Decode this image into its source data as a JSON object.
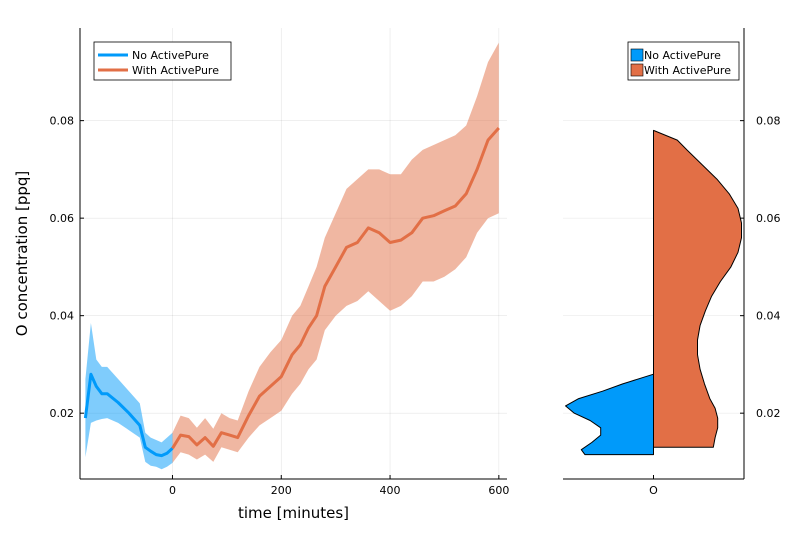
{
  "chart_data": [
    {
      "type": "line",
      "xlabel": "time [minutes]",
      "ylabel": "O concentration [ppq]",
      "xlim": [
        -170,
        615
      ],
      "ylim": [
        0.0065,
        0.099
      ],
      "xticks": [
        0,
        200,
        400,
        600
      ],
      "yticks": [
        0.02,
        0.04,
        0.06,
        0.08
      ],
      "ytick_labels": [
        "0.02",
        "0.04",
        "0.06",
        "0.08"
      ],
      "grid": true,
      "legend_position": "top-left",
      "series": [
        {
          "name": "No ActivePure",
          "color": "#009AFA",
          "x": [
            -160,
            -150,
            -140,
            -130,
            -120,
            -100,
            -80,
            -60,
            -50,
            -40,
            -30,
            -20,
            -10,
            0
          ],
          "y": [
            0.019,
            0.028,
            0.0255,
            0.024,
            0.024,
            0.0222,
            0.02,
            0.0175,
            0.013,
            0.0122,
            0.0115,
            0.0113,
            0.0118,
            0.0128
          ],
          "lower": [
            0.011,
            0.018,
            0.0185,
            0.0188,
            0.019,
            0.018,
            0.0165,
            0.015,
            0.01,
            0.0092,
            0.009,
            0.0085,
            0.009,
            0.0098
          ],
          "upper": [
            0.027,
            0.0385,
            0.031,
            0.0295,
            0.0295,
            0.027,
            0.0245,
            0.022,
            0.016,
            0.015,
            0.0145,
            0.014,
            0.015,
            0.016
          ]
        },
        {
          "name": "With ActivePure",
          "color": "#E26F46",
          "x": [
            0,
            15,
            30,
            45,
            60,
            75,
            90,
            105,
            120,
            140,
            160,
            180,
            200,
            220,
            235,
            250,
            265,
            280,
            300,
            320,
            340,
            360,
            380,
            400,
            420,
            440,
            460,
            480,
            500,
            520,
            540,
            560,
            580,
            600
          ],
          "y": [
            0.0128,
            0.0155,
            0.0152,
            0.0135,
            0.015,
            0.0132,
            0.016,
            0.0155,
            0.015,
            0.0195,
            0.0235,
            0.0255,
            0.0275,
            0.032,
            0.034,
            0.0375,
            0.04,
            0.046,
            0.05,
            0.054,
            0.055,
            0.058,
            0.057,
            0.055,
            0.0555,
            0.057,
            0.06,
            0.0605,
            0.0615,
            0.0625,
            0.065,
            0.07,
            0.076,
            0.0785
          ],
          "lower": [
            0.0098,
            0.012,
            0.0115,
            0.0105,
            0.0115,
            0.01,
            0.013,
            0.0125,
            0.012,
            0.015,
            0.0175,
            0.019,
            0.0205,
            0.024,
            0.026,
            0.029,
            0.031,
            0.037,
            0.04,
            0.042,
            0.043,
            0.045,
            0.043,
            0.041,
            0.042,
            0.044,
            0.047,
            0.047,
            0.048,
            0.0495,
            0.052,
            0.057,
            0.06,
            0.061
          ],
          "upper": [
            0.016,
            0.0195,
            0.019,
            0.017,
            0.019,
            0.0168,
            0.02,
            0.019,
            0.0185,
            0.0245,
            0.0295,
            0.0325,
            0.035,
            0.04,
            0.042,
            0.046,
            0.05,
            0.056,
            0.061,
            0.066,
            0.068,
            0.07,
            0.07,
            0.069,
            0.069,
            0.072,
            0.074,
            0.075,
            0.076,
            0.077,
            0.079,
            0.085,
            0.092,
            0.096
          ]
        }
      ]
    },
    {
      "type": "violin",
      "categories": [
        "O"
      ],
      "ylim": [
        0.0065,
        0.099
      ],
      "yticks": [
        0.02,
        0.04,
        0.06,
        0.08
      ],
      "ytick_labels": [
        "0.02",
        "0.04",
        "0.06",
        "0.08"
      ],
      "legend_position": "top-right",
      "series": [
        {
          "name": "No ActivePure",
          "color": "#009AFA",
          "side": "left",
          "y": [
            0.0115,
            0.0125,
            0.014,
            0.0155,
            0.017,
            0.0185,
            0.02,
            0.0215,
            0.023,
            0.0245,
            0.026,
            0.028
          ],
          "density": [
            0.78,
            0.82,
            0.7,
            0.6,
            0.6,
            0.72,
            0.9,
            1.0,
            0.85,
            0.58,
            0.35,
            0.0
          ]
        },
        {
          "name": "With ActivePure",
          "color": "#E26F46",
          "side": "right",
          "y": [
            0.013,
            0.015,
            0.017,
            0.019,
            0.021,
            0.023,
            0.026,
            0.029,
            0.032,
            0.035,
            0.038,
            0.041,
            0.044,
            0.047,
            0.05,
            0.053,
            0.056,
            0.059,
            0.062,
            0.065,
            0.068,
            0.071,
            0.074,
            0.076,
            0.078
          ],
          "density": [
            0.68,
            0.7,
            0.73,
            0.73,
            0.7,
            0.64,
            0.58,
            0.53,
            0.5,
            0.5,
            0.53,
            0.59,
            0.66,
            0.76,
            0.88,
            0.96,
            1.0,
            1.0,
            0.96,
            0.86,
            0.72,
            0.55,
            0.38,
            0.27,
            0.0
          ]
        }
      ]
    }
  ]
}
